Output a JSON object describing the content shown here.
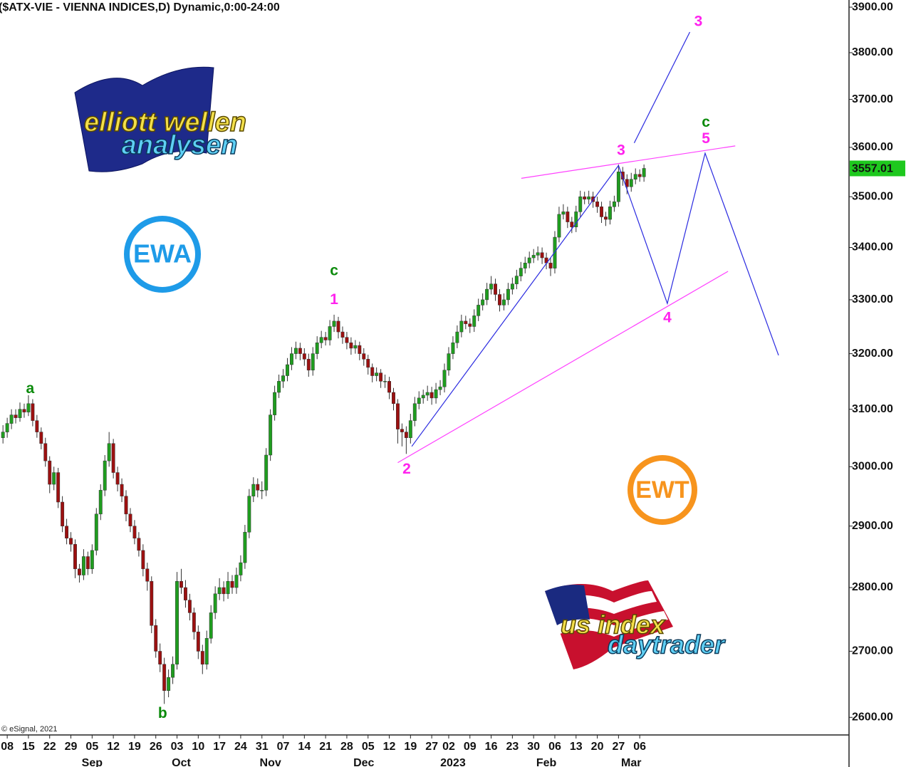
{
  "chart_data": {
    "type": "candlestick",
    "title": "($ATX-VIE - VIENNA INDICES,D) Dynamic,0:00-24:00",
    "copyright": "© eSignal, 2021",
    "log_scale": true,
    "grid": false,
    "up_color": "#1f9d1f",
    "down_color": "#9c1010",
    "wick_color": "#333333",
    "last_price_color": "#1ec81e",
    "xlim": [
      -0.7,
      199.3
    ],
    "ylim": [
      2574,
      3916
    ],
    "yticks": [
      {
        "value": 3900,
        "label": "3900.00"
      },
      {
        "value": 3800,
        "label": "3800.00"
      },
      {
        "value": 3700,
        "label": "3700.00"
      },
      {
        "value": 3600,
        "label": "3600.00"
      },
      {
        "value": 3500,
        "label": "3500.00"
      },
      {
        "value": 3400,
        "label": "3400.00"
      },
      {
        "value": 3300,
        "label": "3300.00"
      },
      {
        "value": 3200,
        "label": "3200.00"
      },
      {
        "value": 3100,
        "label": "3100.00"
      },
      {
        "value": 3000,
        "label": "3000.00"
      },
      {
        "value": 2900,
        "label": "2900.00"
      },
      {
        "value": 2800,
        "label": "2800.00"
      },
      {
        "value": 2700,
        "label": "2700.00"
      },
      {
        "value": 2600,
        "label": "2600.00"
      }
    ],
    "xticks": [
      {
        "value": 1,
        "label": "08"
      },
      {
        "value": 6,
        "label": "15"
      },
      {
        "value": 11,
        "label": "22"
      },
      {
        "value": 16,
        "label": "29"
      },
      {
        "value": 21,
        "label": "05"
      },
      {
        "value": 26,
        "label": "12"
      },
      {
        "value": 31,
        "label": "19"
      },
      {
        "value": 36,
        "label": "26"
      },
      {
        "value": 41,
        "label": "03"
      },
      {
        "value": 46,
        "label": "10"
      },
      {
        "value": 51,
        "label": "17"
      },
      {
        "value": 56,
        "label": "24"
      },
      {
        "value": 61,
        "label": "31"
      },
      {
        "value": 66,
        "label": "07"
      },
      {
        "value": 71,
        "label": "14"
      },
      {
        "value": 76,
        "label": "21"
      },
      {
        "value": 81,
        "label": "28"
      },
      {
        "value": 86,
        "label": "05"
      },
      {
        "value": 91,
        "label": "12"
      },
      {
        "value": 96,
        "label": "19"
      },
      {
        "value": 101,
        "label": "27"
      },
      {
        "value": 105,
        "label": "02"
      },
      {
        "value": 110,
        "label": "09"
      },
      {
        "value": 115,
        "label": "16"
      },
      {
        "value": 120,
        "label": "23"
      },
      {
        "value": 125,
        "label": "30"
      },
      {
        "value": 130,
        "label": "06"
      },
      {
        "value": 135,
        "label": "13"
      },
      {
        "value": 140,
        "label": "20"
      },
      {
        "value": 145,
        "label": "27"
      },
      {
        "value": 150,
        "label": "06"
      }
    ],
    "month_ticks": [
      {
        "value": 21,
        "label": "Sep"
      },
      {
        "value": 42,
        "label": "Oct"
      },
      {
        "value": 63,
        "label": "Nov"
      },
      {
        "value": 85,
        "label": "Dec"
      },
      {
        "value": 106,
        "label": "2023"
      },
      {
        "value": 128,
        "label": "Feb"
      },
      {
        "value": 148,
        "label": "Mar"
      }
    ],
    "open": [
      3050,
      3060,
      3075,
      3090,
      3085,
      3100,
      3095,
      3110,
      3080,
      3060,
      3040,
      3010,
      2970,
      2990,
      2940,
      2900,
      2880,
      2870,
      2830,
      2820,
      2850,
      2830,
      2860,
      2920,
      2960,
      3010,
      3040,
      2990,
      2970,
      2950,
      2920,
      2900,
      2880,
      2860,
      2830,
      2810,
      2740,
      2700,
      2680,
      2640,
      2660,
      2680,
      2810,
      2800,
      2780,
      2760,
      2730,
      2700,
      2680,
      2720,
      2760,
      2790,
      2800,
      2790,
      2810,
      2800,
      2820,
      2840,
      2890,
      2950,
      2970,
      2960,
      2960,
      3020,
      3090,
      3130,
      3150,
      3160,
      3180,
      3200,
      3210,
      3200,
      3190,
      3170,
      3200,
      3220,
      3230,
      3225,
      3250,
      3260,
      3240,
      3230,
      3220,
      3210,
      3215,
      3200,
      3190,
      3175,
      3160,
      3165,
      3150,
      3150,
      3130,
      3110,
      3065,
      3060,
      3050,
      3080,
      3110,
      3120,
      3125,
      3130,
      3120,
      3135,
      3140,
      3170,
      3200,
      3220,
      3240,
      3260,
      3255,
      3250,
      3270,
      3290,
      3300,
      3320,
      3330,
      3310,
      3290,
      3300,
      3320,
      3330,
      3345,
      3360,
      3370,
      3380,
      3385,
      3390,
      3380,
      3370,
      3360,
      3420,
      3465,
      3470,
      3450,
      3440,
      3470,
      3500,
      3495,
      3500,
      3490,
      3480,
      3460,
      3455,
      3480,
      3490,
      3550,
      3535,
      3520,
      3535,
      3545,
      3540
    ],
    "high": [
      3072,
      3085,
      3100,
      3100,
      3112,
      3110,
      3125,
      3118,
      3090,
      3068,
      3050,
      3018,
      3000,
      2998,
      2950,
      2912,
      2890,
      2878,
      2838,
      2862,
      2858,
      2870,
      2930,
      2970,
      3020,
      3060,
      3048,
      3000,
      2980,
      2960,
      2930,
      2910,
      2890,
      2870,
      2840,
      2818,
      2750,
      2712,
      2690,
      2672,
      2692,
      2825,
      2830,
      2812,
      2790,
      2768,
      2740,
      2710,
      2732,
      2772,
      2802,
      2815,
      2810,
      2825,
      2820,
      2832,
      2852,
      2902,
      2962,
      2982,
      2980,
      2975,
      3032,
      3100,
      3142,
      3162,
      3172,
      3192,
      3212,
      3222,
      3220,
      3210,
      3200,
      3212,
      3232,
      3242,
      3240,
      3262,
      3272,
      3268,
      3250,
      3240,
      3230,
      3225,
      3222,
      3210,
      3198,
      3182,
      3175,
      3172,
      3162,
      3158,
      3138,
      3118,
      3075,
      3070,
      3092,
      3122,
      3132,
      3135,
      3142,
      3140,
      3147,
      3152,
      3182,
      3212,
      3232,
      3252,
      3272,
      3270,
      3265,
      3282,
      3302,
      3312,
      3332,
      3345,
      3340,
      3320,
      3312,
      3332,
      3342,
      3357,
      3372,
      3382,
      3392,
      3397,
      3402,
      3400,
      3390,
      3380,
      3432,
      3480,
      3485,
      3480,
      3460,
      3482,
      3512,
      3510,
      3512,
      3510,
      3500,
      3490,
      3470,
      3492,
      3502,
      3565,
      3560,
      3545,
      3548,
      3557,
      3555,
      3565
    ],
    "low": [
      3040,
      3050,
      3065,
      3075,
      3078,
      3085,
      3088,
      3070,
      3050,
      3030,
      3000,
      2955,
      2960,
      2930,
      2890,
      2870,
      2858,
      2815,
      2808,
      2812,
      2820,
      2822,
      2852,
      2910,
      2950,
      3000,
      2980,
      2958,
      2940,
      2908,
      2890,
      2870,
      2850,
      2818,
      2795,
      2728,
      2690,
      2668,
      2620,
      2630,
      2650,
      2672,
      2790,
      2768,
      2748,
      2718,
      2688,
      2665,
      2672,
      2712,
      2750,
      2780,
      2778,
      2782,
      2790,
      2790,
      2810,
      2830,
      2880,
      2940,
      2948,
      2945,
      2950,
      3010,
      3080,
      3120,
      3138,
      3150,
      3170,
      3190,
      3188,
      3178,
      3158,
      3160,
      3190,
      3210,
      3215,
      3215,
      3240,
      3228,
      3218,
      3208,
      3198,
      3200,
      3188,
      3178,
      3162,
      3148,
      3150,
      3138,
      3138,
      3118,
      3098,
      3040,
      3035,
      3022,
      3040,
      3070,
      3100,
      3110,
      3115,
      3108,
      3110,
      3125,
      3130,
      3160,
      3190,
      3210,
      3230,
      3245,
      3238,
      3240,
      3260,
      3280,
      3290,
      3310,
      3298,
      3278,
      3280,
      3290,
      3310,
      3320,
      3335,
      3350,
      3360,
      3370,
      3375,
      3368,
      3358,
      3345,
      3350,
      3410,
      3455,
      3438,
      3428,
      3430,
      3460,
      3485,
      3485,
      3478,
      3468,
      3448,
      3442,
      3445,
      3470,
      3480,
      3522,
      3505,
      3510,
      3525,
      3530,
      3530
    ],
    "close": [
      3060,
      3075,
      3090,
      3085,
      3100,
      3095,
      3110,
      3080,
      3060,
      3040,
      3010,
      2970,
      2990,
      2940,
      2900,
      2880,
      2870,
      2830,
      2820,
      2850,
      2830,
      2860,
      2920,
      2960,
      3010,
      3040,
      2990,
      2970,
      2950,
      2920,
      2900,
      2880,
      2860,
      2830,
      2810,
      2740,
      2700,
      2680,
      2640,
      2660,
      2680,
      2810,
      2800,
      2780,
      2760,
      2730,
      2700,
      2680,
      2720,
      2760,
      2790,
      2800,
      2790,
      2810,
      2800,
      2820,
      2840,
      2890,
      2950,
      2970,
      2960,
      2960,
      3020,
      3090,
      3130,
      3150,
      3160,
      3180,
      3200,
      3210,
      3200,
      3190,
      3170,
      3200,
      3220,
      3230,
      3225,
      3250,
      3260,
      3240,
      3230,
      3220,
      3210,
      3215,
      3200,
      3190,
      3175,
      3160,
      3165,
      3150,
      3150,
      3130,
      3110,
      3065,
      3060,
      3050,
      3080,
      3110,
      3120,
      3125,
      3130,
      3120,
      3135,
      3140,
      3170,
      3200,
      3220,
      3240,
      3260,
      3255,
      3250,
      3270,
      3290,
      3300,
      3320,
      3330,
      3310,
      3290,
      3300,
      3320,
      3330,
      3345,
      3360,
      3370,
      3380,
      3385,
      3390,
      3380,
      3370,
      3360,
      3420,
      3465,
      3470,
      3450,
      3440,
      3470,
      3500,
      3495,
      3500,
      3490,
      3480,
      3460,
      3455,
      3480,
      3490,
      3550,
      3535,
      3520,
      3535,
      3545,
      3540,
      3557.01
    ],
    "lines": [
      {
        "color": "#2a2ae0",
        "points": [
          [
            96.3,
            3035
          ],
          [
            145,
            3563
          ]
        ]
      },
      {
        "color": "#2a2ae0",
        "points": [
          [
            145,
            3563
          ],
          [
            156.5,
            3293
          ],
          [
            165.4,
            3588
          ],
          [
            182.7,
            3197
          ]
        ]
      },
      {
        "color": "#2a2ae0",
        "points": [
          [
            148.7,
            3609
          ],
          [
            161.8,
            3845
          ]
        ]
      },
      {
        "color": "#ff40ff",
        "points": [
          [
            122.1,
            3537
          ],
          [
            172.5,
            3603
          ]
        ]
      },
      {
        "color": "#ff40ff",
        "points": [
          [
            93,
            3007
          ],
          [
            170.8,
            3354
          ]
        ]
      }
    ],
    "annotations": [
      {
        "text": "a",
        "x": 6.4,
        "y": 3136,
        "color": "#0a8a0a"
      },
      {
        "text": "b",
        "x": 37.6,
        "y": 2605,
        "color": "#0a8a0a"
      },
      {
        "text": "c",
        "x": 78,
        "y": 3354,
        "color": "#0a8a0a"
      },
      {
        "text": "1",
        "x": 78,
        "y": 3299,
        "color": "#ff22ee"
      },
      {
        "text": "2",
        "x": 95.1,
        "y": 2995,
        "color": "#ff22ee"
      },
      {
        "text": "3",
        "x": 145.6,
        "y": 3593,
        "color": "#ff22ee"
      },
      {
        "text": "3",
        "x": 163.8,
        "y": 3867,
        "color": "#ff22ee"
      },
      {
        "text": "4",
        "x": 156.5,
        "y": 3265,
        "color": "#ff22ee"
      },
      {
        "text": "5",
        "x": 165.6,
        "y": 3617,
        "color": "#ff22ee"
      },
      {
        "text": "c",
        "x": 165.6,
        "y": 3651,
        "color": "#0a8a0a"
      }
    ]
  },
  "logos": {
    "ew_top": "elliott wellen",
    "ew_bottom": "analysen",
    "ewa": "EWA",
    "ewt": "EWT",
    "us_top": "us index",
    "us_bottom": "daytrader"
  }
}
